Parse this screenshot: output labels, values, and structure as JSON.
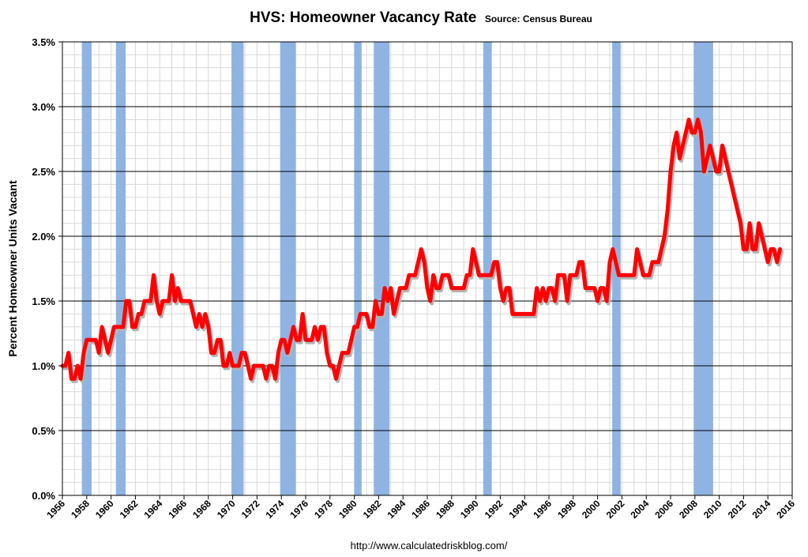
{
  "chart_data": {
    "type": "line",
    "title": "HVS: Homeowner Vacancy Rate",
    "subtitle": "Source: Census Bureau",
    "ylabel": "Percent Homeowner Units Vacant",
    "xlabel": "",
    "footer": "http://www.calculatedriskblog.com/",
    "xlim": [
      1956,
      2016
    ],
    "ylim": [
      0,
      3.5
    ],
    "ytick_labels": [
      "0.0%",
      "0.5%",
      "1.0%",
      "1.5%",
      "2.0%",
      "2.5%",
      "3.0%",
      "3.5%"
    ],
    "ytick_values": [
      0,
      0.5,
      1.0,
      1.5,
      2.0,
      2.5,
      3.0,
      3.5
    ],
    "xtick_labels": [
      "1956",
      "1958",
      "1960",
      "1962",
      "1964",
      "1966",
      "1968",
      "1970",
      "1972",
      "1974",
      "1976",
      "1978",
      "1980",
      "1982",
      "1984",
      "1986",
      "1988",
      "1990",
      "1992",
      "1994",
      "1996",
      "1998",
      "2000",
      "2002",
      "2004",
      "2006",
      "2008",
      "2010",
      "2012",
      "2014",
      "2016"
    ],
    "xtick_values": [
      1956,
      1958,
      1960,
      1962,
      1964,
      1966,
      1968,
      1970,
      1972,
      1974,
      1976,
      1978,
      1980,
      1982,
      1984,
      1986,
      1988,
      1990,
      1992,
      1994,
      1996,
      1998,
      2000,
      2002,
      2004,
      2006,
      2008,
      2010,
      2012,
      2014,
      2016
    ],
    "grid": true,
    "line_color": "#ff0000",
    "shade_color": "#8fb4e3",
    "recessions": [
      [
        1957.6,
        1958.4
      ],
      [
        1960.4,
        1961.2
      ],
      [
        1969.9,
        1970.9
      ],
      [
        1973.9,
        1975.2
      ],
      [
        1980.0,
        1980.6
      ],
      [
        1981.6,
        1982.9
      ],
      [
        1990.6,
        1991.3
      ],
      [
        2001.2,
        2001.9
      ],
      [
        2007.9,
        2009.5
      ]
    ],
    "series": [
      {
        "values": [
          [
            1956.0,
            1.0
          ],
          [
            1956.25,
            1.0
          ],
          [
            1956.5,
            1.1
          ],
          [
            1956.75,
            0.9
          ],
          [
            1957.0,
            0.9
          ],
          [
            1957.25,
            1.0
          ],
          [
            1957.5,
            0.9
          ],
          [
            1957.75,
            1.1
          ],
          [
            1958.0,
            1.2
          ],
          [
            1958.5,
            1.2
          ],
          [
            1958.75,
            1.2
          ],
          [
            1959.0,
            1.1
          ],
          [
            1959.25,
            1.3
          ],
          [
            1959.5,
            1.2
          ],
          [
            1959.75,
            1.1
          ],
          [
            1960.0,
            1.2
          ],
          [
            1960.25,
            1.3
          ],
          [
            1960.75,
            1.3
          ],
          [
            1961.0,
            1.3
          ],
          [
            1961.25,
            1.5
          ],
          [
            1961.5,
            1.5
          ],
          [
            1961.75,
            1.3
          ],
          [
            1962.0,
            1.3
          ],
          [
            1962.25,
            1.4
          ],
          [
            1962.5,
            1.4
          ],
          [
            1962.75,
            1.5
          ],
          [
            1963.25,
            1.5
          ],
          [
            1963.5,
            1.7
          ],
          [
            1963.75,
            1.5
          ],
          [
            1964.0,
            1.4
          ],
          [
            1964.25,
            1.5
          ],
          [
            1964.5,
            1.5
          ],
          [
            1964.75,
            1.5
          ],
          [
            1965.0,
            1.7
          ],
          [
            1965.25,
            1.5
          ],
          [
            1965.5,
            1.6
          ],
          [
            1965.75,
            1.5
          ],
          [
            1966.0,
            1.5
          ],
          [
            1966.5,
            1.5
          ],
          [
            1966.75,
            1.4
          ],
          [
            1967.0,
            1.3
          ],
          [
            1967.25,
            1.4
          ],
          [
            1967.5,
            1.3
          ],
          [
            1967.75,
            1.4
          ],
          [
            1968.0,
            1.3
          ],
          [
            1968.25,
            1.1
          ],
          [
            1968.5,
            1.1
          ],
          [
            1968.75,
            1.2
          ],
          [
            1969.0,
            1.2
          ],
          [
            1969.25,
            1.0
          ],
          [
            1969.5,
            1.0
          ],
          [
            1969.75,
            1.1
          ],
          [
            1970.0,
            1.0
          ],
          [
            1970.5,
            1.0
          ],
          [
            1970.75,
            1.1
          ],
          [
            1971.0,
            1.1
          ],
          [
            1971.25,
            1.0
          ],
          [
            1971.5,
            0.9
          ],
          [
            1971.75,
            1.0
          ],
          [
            1972.0,
            1.0
          ],
          [
            1972.5,
            1.0
          ],
          [
            1972.75,
            0.9
          ],
          [
            1973.0,
            1.0
          ],
          [
            1973.25,
            1.0
          ],
          [
            1973.5,
            0.9
          ],
          [
            1973.75,
            1.1
          ],
          [
            1974.0,
            1.2
          ],
          [
            1974.25,
            1.2
          ],
          [
            1974.5,
            1.1
          ],
          [
            1974.75,
            1.2
          ],
          [
            1975.0,
            1.3
          ],
          [
            1975.25,
            1.2
          ],
          [
            1975.5,
            1.2
          ],
          [
            1975.75,
            1.4
          ],
          [
            1976.0,
            1.2
          ],
          [
            1976.25,
            1.2
          ],
          [
            1976.5,
            1.2
          ],
          [
            1976.75,
            1.3
          ],
          [
            1977.0,
            1.2
          ],
          [
            1977.25,
            1.3
          ],
          [
            1977.5,
            1.3
          ],
          [
            1977.75,
            1.1
          ],
          [
            1978.0,
            1.0
          ],
          [
            1978.25,
            1.0
          ],
          [
            1978.5,
            0.9
          ],
          [
            1978.75,
            1.0
          ],
          [
            1979.0,
            1.1
          ],
          [
            1979.25,
            1.1
          ],
          [
            1979.5,
            1.1
          ],
          [
            1979.75,
            1.2
          ],
          [
            1980.0,
            1.3
          ],
          [
            1980.25,
            1.3
          ],
          [
            1980.5,
            1.4
          ],
          [
            1980.75,
            1.4
          ],
          [
            1981.0,
            1.4
          ],
          [
            1981.25,
            1.3
          ],
          [
            1981.5,
            1.3
          ],
          [
            1981.75,
            1.5
          ],
          [
            1982.0,
            1.4
          ],
          [
            1982.25,
            1.4
          ],
          [
            1982.5,
            1.6
          ],
          [
            1982.75,
            1.5
          ],
          [
            1983.0,
            1.6
          ],
          [
            1983.25,
            1.4
          ],
          [
            1983.5,
            1.5
          ],
          [
            1983.75,
            1.6
          ],
          [
            1984.0,
            1.6
          ],
          [
            1984.25,
            1.6
          ],
          [
            1984.5,
            1.7
          ],
          [
            1984.75,
            1.7
          ],
          [
            1985.0,
            1.7
          ],
          [
            1985.25,
            1.8
          ],
          [
            1985.5,
            1.9
          ],
          [
            1985.75,
            1.8
          ],
          [
            1986.0,
            1.6
          ],
          [
            1986.25,
            1.5
          ],
          [
            1986.5,
            1.7
          ],
          [
            1986.75,
            1.6
          ],
          [
            1987.0,
            1.6
          ],
          [
            1987.25,
            1.7
          ],
          [
            1987.5,
            1.7
          ],
          [
            1987.75,
            1.7
          ],
          [
            1988.0,
            1.6
          ],
          [
            1988.5,
            1.6
          ],
          [
            1988.75,
            1.6
          ],
          [
            1989.0,
            1.6
          ],
          [
            1989.25,
            1.7
          ],
          [
            1989.5,
            1.7
          ],
          [
            1989.75,
            1.9
          ],
          [
            1990.0,
            1.8
          ],
          [
            1990.25,
            1.7
          ],
          [
            1990.75,
            1.7
          ],
          [
            1991.0,
            1.7
          ],
          [
            1991.25,
            1.7
          ],
          [
            1991.5,
            1.8
          ],
          [
            1991.75,
            1.8
          ],
          [
            1992.0,
            1.6
          ],
          [
            1992.25,
            1.5
          ],
          [
            1992.5,
            1.6
          ],
          [
            1992.75,
            1.6
          ],
          [
            1993.0,
            1.4
          ],
          [
            1993.5,
            1.4
          ],
          [
            1993.75,
            1.4
          ],
          [
            1994.0,
            1.4
          ],
          [
            1994.5,
            1.4
          ],
          [
            1994.75,
            1.4
          ],
          [
            1995.0,
            1.6
          ],
          [
            1995.25,
            1.5
          ],
          [
            1995.5,
            1.6
          ],
          [
            1995.75,
            1.5
          ],
          [
            1996.0,
            1.6
          ],
          [
            1996.25,
            1.6
          ],
          [
            1996.5,
            1.5
          ],
          [
            1996.75,
            1.7
          ],
          [
            1997.0,
            1.7
          ],
          [
            1997.25,
            1.7
          ],
          [
            1997.5,
            1.5
          ],
          [
            1997.75,
            1.7
          ],
          [
            1998.0,
            1.7
          ],
          [
            1998.25,
            1.7
          ],
          [
            1998.5,
            1.8
          ],
          [
            1998.75,
            1.8
          ],
          [
            1999.0,
            1.6
          ],
          [
            1999.5,
            1.6
          ],
          [
            1999.75,
            1.6
          ],
          [
            2000.0,
            1.5
          ],
          [
            2000.25,
            1.6
          ],
          [
            2000.5,
            1.6
          ],
          [
            2000.75,
            1.5
          ],
          [
            2001.0,
            1.8
          ],
          [
            2001.25,
            1.9
          ],
          [
            2001.5,
            1.8
          ],
          [
            2001.75,
            1.7
          ],
          [
            2002.0,
            1.7
          ],
          [
            2002.5,
            1.7
          ],
          [
            2002.75,
            1.7
          ],
          [
            2003.0,
            1.7
          ],
          [
            2003.25,
            1.9
          ],
          [
            2003.5,
            1.8
          ],
          [
            2003.75,
            1.7
          ],
          [
            2004.0,
            1.7
          ],
          [
            2004.25,
            1.7
          ],
          [
            2004.5,
            1.8
          ],
          [
            2004.75,
            1.8
          ],
          [
            2005.0,
            1.8
          ],
          [
            2005.25,
            1.9
          ],
          [
            2005.5,
            2.0
          ],
          [
            2005.75,
            2.2
          ],
          [
            2006.0,
            2.5
          ],
          [
            2006.25,
            2.7
          ],
          [
            2006.5,
            2.8
          ],
          [
            2006.75,
            2.6
          ],
          [
            2007.0,
            2.7
          ],
          [
            2007.25,
            2.8
          ],
          [
            2007.5,
            2.9
          ],
          [
            2007.75,
            2.8
          ],
          [
            2008.0,
            2.8
          ],
          [
            2008.25,
            2.9
          ],
          [
            2008.5,
            2.8
          ],
          [
            2008.75,
            2.5
          ],
          [
            2009.0,
            2.6
          ],
          [
            2009.25,
            2.7
          ],
          [
            2009.5,
            2.6
          ],
          [
            2009.75,
            2.5
          ],
          [
            2010.0,
            2.5
          ],
          [
            2010.25,
            2.7
          ],
          [
            2010.5,
            2.6
          ],
          [
            2010.75,
            2.5
          ],
          [
            2011.0,
            2.4
          ],
          [
            2011.25,
            2.3
          ],
          [
            2011.5,
            2.2
          ],
          [
            2011.75,
            2.1
          ],
          [
            2012.0,
            1.9
          ],
          [
            2012.25,
            1.9
          ],
          [
            2012.5,
            2.1
          ],
          [
            2012.75,
            1.9
          ],
          [
            2013.0,
            1.9
          ],
          [
            2013.25,
            2.1
          ],
          [
            2013.5,
            2.0
          ],
          [
            2013.75,
            1.9
          ],
          [
            2014.0,
            1.8
          ],
          [
            2014.25,
            1.9
          ],
          [
            2014.5,
            1.9
          ],
          [
            2014.75,
            1.8
          ],
          [
            2015.0,
            1.9
          ]
        ]
      }
    ]
  }
}
